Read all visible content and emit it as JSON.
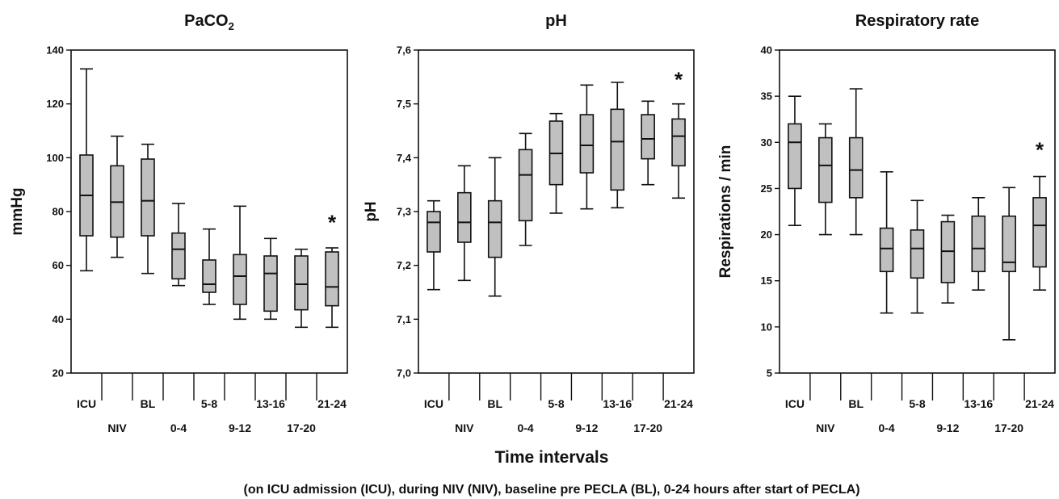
{
  "figure": {
    "common_xlabel": "Time intervals",
    "caption": "(on ICU admission (ICU), during NIV (NIV), baseline pre PECLA (BL), 0-24 hours after start of PECLA)"
  },
  "chart_data": [
    {
      "type": "box",
      "title": {
        "main": "PaCO",
        "subscript": "2"
      },
      "ylabel": "mmHg",
      "xlabel": "",
      "ylim": [
        20,
        140
      ],
      "yticks": [
        "20",
        "40",
        "60",
        "80",
        "100",
        "120",
        "140"
      ],
      "categories": [
        "ICU",
        "NIV",
        "BL",
        "0-4",
        "5-8",
        "9-12",
        "13-16",
        "17-20",
        "21-24"
      ],
      "boxes": [
        {
          "min": 58,
          "q1": 71,
          "median": 86,
          "q3": 101,
          "max": 133
        },
        {
          "min": 63,
          "q1": 70.5,
          "median": 83.5,
          "q3": 97,
          "max": 108
        },
        {
          "min": 57,
          "q1": 71,
          "median": 84,
          "q3": 99.5,
          "max": 105
        },
        {
          "min": 52.5,
          "q1": 55,
          "median": 66,
          "q3": 72,
          "max": 83
        },
        {
          "min": 45.5,
          "q1": 50,
          "median": 53,
          "q3": 62,
          "max": 73.5
        },
        {
          "min": 40,
          "q1": 45.5,
          "median": 56,
          "q3": 64,
          "max": 82
        },
        {
          "min": 40,
          "q1": 43,
          "median": 57,
          "q3": 63.5,
          "max": 70
        },
        {
          "min": 37,
          "q1": 43.5,
          "median": 53,
          "q3": 63.5,
          "max": 66
        },
        {
          "min": 37,
          "q1": 45,
          "median": 52,
          "q3": 65,
          "max": 66.5
        }
      ],
      "annotation": {
        "text": "*",
        "category": "21-24",
        "y": 76
      }
    },
    {
      "type": "box",
      "title": {
        "main": "pH",
        "subscript": ""
      },
      "ylabel": "pH",
      "xlabel": "",
      "ylim": [
        7.0,
        7.6
      ],
      "yticks": [
        "7,0",
        "7,1",
        "7,2",
        "7,3",
        "7,4",
        "7,5",
        "7,6"
      ],
      "categories": [
        "ICU",
        "NIV",
        "BL",
        "0-4",
        "5-8",
        "9-12",
        "13-16",
        "17-20",
        "21-24"
      ],
      "boxes": [
        {
          "min": 7.155,
          "q1": 7.225,
          "median": 7.28,
          "q3": 7.3,
          "max": 7.32
        },
        {
          "min": 7.172,
          "q1": 7.243,
          "median": 7.28,
          "q3": 7.335,
          "max": 7.385
        },
        {
          "min": 7.143,
          "q1": 7.215,
          "median": 7.28,
          "q3": 7.32,
          "max": 7.4
        },
        {
          "min": 7.237,
          "q1": 7.283,
          "median": 7.368,
          "q3": 7.415,
          "max": 7.445
        },
        {
          "min": 7.297,
          "q1": 7.35,
          "median": 7.408,
          "q3": 7.468,
          "max": 7.482
        },
        {
          "min": 7.305,
          "q1": 7.372,
          "median": 7.423,
          "q3": 7.48,
          "max": 7.535
        },
        {
          "min": 7.307,
          "q1": 7.34,
          "median": 7.43,
          "q3": 7.49,
          "max": 7.54
        },
        {
          "min": 7.35,
          "q1": 7.398,
          "median": 7.435,
          "q3": 7.48,
          "max": 7.505
        },
        {
          "min": 7.325,
          "q1": 7.385,
          "median": 7.44,
          "q3": 7.472,
          "max": 7.5
        }
      ],
      "annotation": {
        "text": "*",
        "category": "21-24",
        "y": 7.545
      }
    },
    {
      "type": "box",
      "title": {
        "main": "Respiratory rate",
        "subscript": ""
      },
      "ylabel": "Respirations / min",
      "xlabel": "",
      "ylim": [
        5,
        40
      ],
      "yticks": [
        "5",
        "10",
        "15",
        "20",
        "25",
        "30",
        "35",
        "40"
      ],
      "categories": [
        "ICU",
        "NIV",
        "BL",
        "0-4",
        "5-8",
        "9-12",
        "13-16",
        "17-20",
        "21-24"
      ],
      "boxes": [
        {
          "min": 21,
          "q1": 25,
          "median": 30,
          "q3": 32,
          "max": 35
        },
        {
          "min": 20,
          "q1": 23.5,
          "median": 27.5,
          "q3": 30.5,
          "max": 32
        },
        {
          "min": 20,
          "q1": 24,
          "median": 27,
          "q3": 30.5,
          "max": 35.8
        },
        {
          "min": 11.5,
          "q1": 16,
          "median": 18.5,
          "q3": 20.7,
          "max": 26.8
        },
        {
          "min": 11.5,
          "q1": 15.3,
          "median": 18.5,
          "q3": 20.5,
          "max": 23.7
        },
        {
          "min": 12.6,
          "q1": 14.8,
          "median": 18.2,
          "q3": 21.4,
          "max": 22.1
        },
        {
          "min": 14,
          "q1": 16,
          "median": 18.5,
          "q3": 22,
          "max": 24
        },
        {
          "min": 8.6,
          "q1": 16,
          "median": 17,
          "q3": 22,
          "max": 25.1
        },
        {
          "min": 14,
          "q1": 16.5,
          "median": 21,
          "q3": 24,
          "max": 26.3
        }
      ],
      "annotation": {
        "text": "*",
        "category": "21-24",
        "y": 29.2
      }
    }
  ],
  "colors": {
    "box_fill": "#c0c0c0",
    "stroke": "#111111",
    "text": "#111111"
  }
}
